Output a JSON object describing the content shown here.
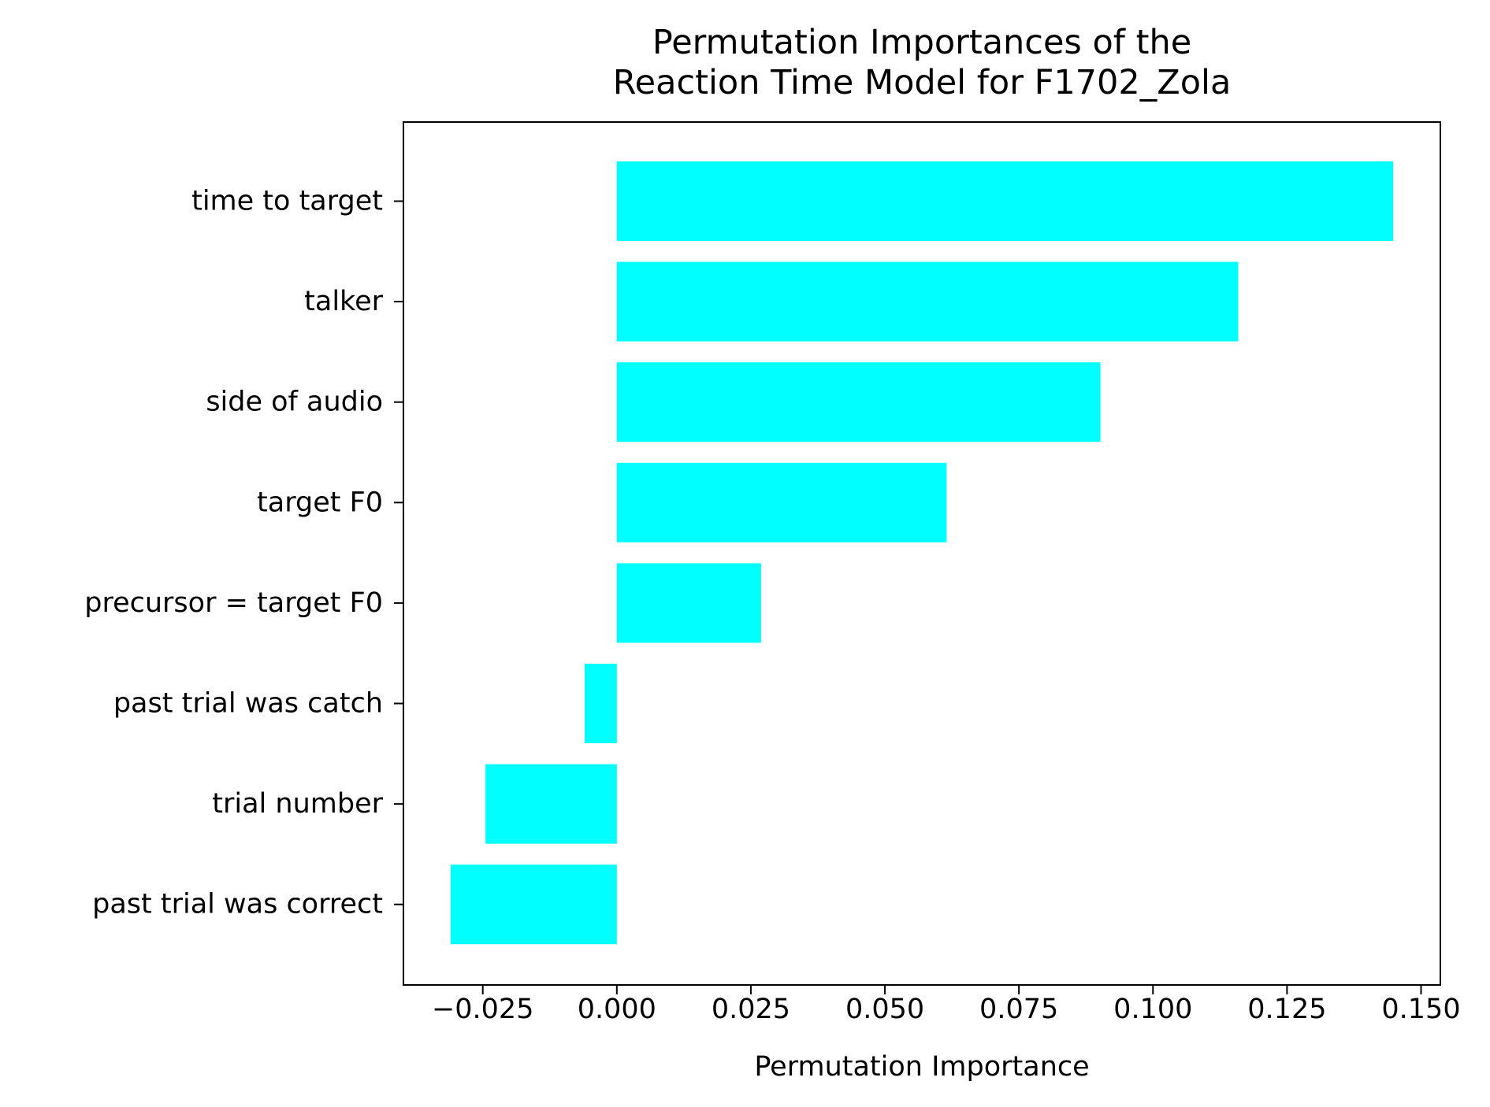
{
  "chart_data": {
    "type": "bar",
    "orientation": "horizontal",
    "title": "Permutation Importances of the\nReaction Time Model for F1702_Zola",
    "xlabel": "Permutation Importance",
    "ylabel": "",
    "categories": [
      "time to target",
      "talker",
      "side of audio",
      "target F0",
      "precursor = target F0",
      "past trial was catch",
      "trial number",
      "past trial was correct"
    ],
    "values": [
      0.1448,
      0.1159,
      0.0902,
      0.0615,
      0.0269,
      -0.006,
      -0.0245,
      -0.031
    ],
    "xlim": [
      -0.0398,
      0.1536
    ],
    "xticks": [
      -0.025,
      0.0,
      0.025,
      0.05,
      0.075,
      0.1,
      0.125,
      0.15
    ],
    "xtick_labels": [
      "−0.025",
      "0.000",
      "0.025",
      "0.050",
      "0.075",
      "0.100",
      "0.125",
      "0.150"
    ],
    "bar_color": "#00ffff",
    "grid": false,
    "legend": "none"
  }
}
